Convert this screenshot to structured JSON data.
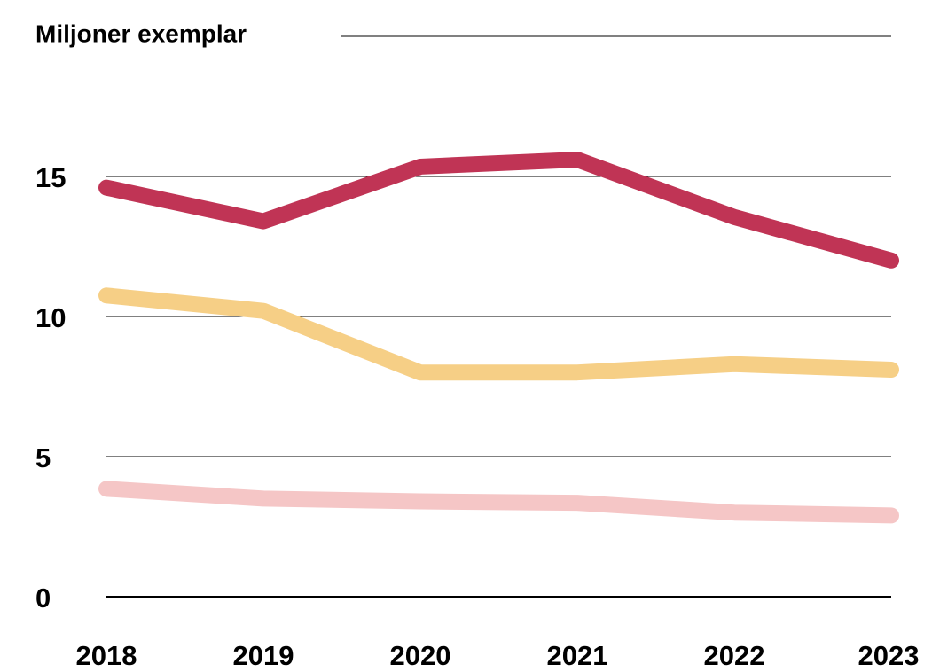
{
  "chart_data": {
    "type": "line",
    "title": "Miljoner exemplar",
    "categories": [
      "2018",
      "2019",
      "2020",
      "2021",
      "2022",
      "2023"
    ],
    "series": [
      {
        "color": "#c03455",
        "values": [
          14.6,
          13.4,
          15.35,
          15.6,
          13.55,
          12.0
        ]
      },
      {
        "color": "#f6cf86",
        "values": [
          10.75,
          10.2,
          8.0,
          8.0,
          8.3,
          8.1
        ]
      },
      {
        "color": "#f5c6c6",
        "values": [
          3.85,
          3.5,
          3.4,
          3.35,
          3.0,
          2.9
        ]
      }
    ],
    "ylim": [
      0,
      20
    ],
    "yticks": [
      0,
      5,
      10,
      15
    ],
    "grid": true
  }
}
